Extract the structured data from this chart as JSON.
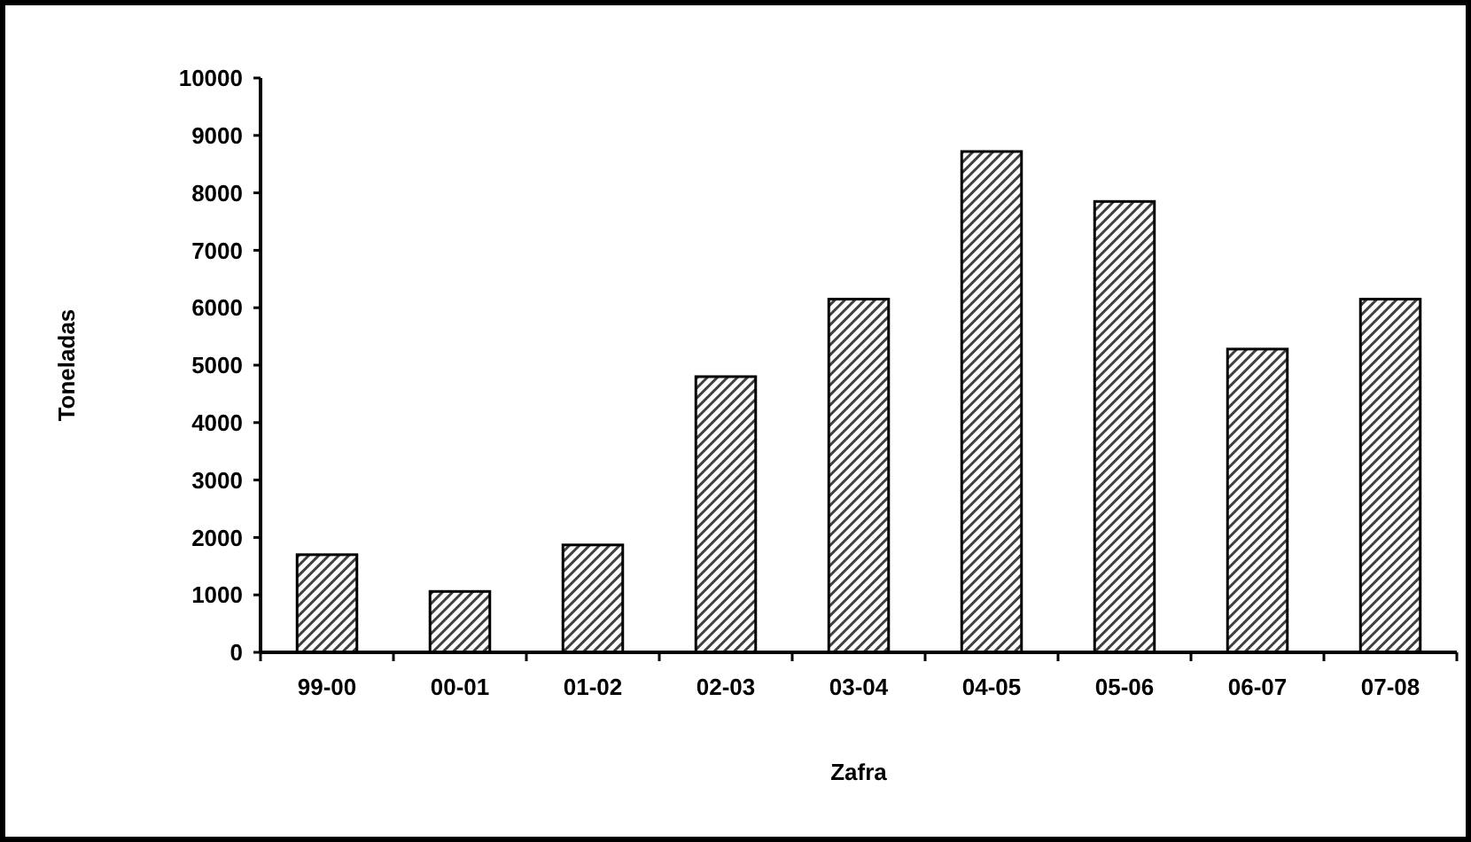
{
  "chart_data": {
    "type": "bar",
    "xlabel": "Zafra",
    "ylabel": "Toneladas",
    "categories": [
      "99-00",
      "00-01",
      "01-02",
      "02-03",
      "03-04",
      "04-05",
      "05-06",
      "06-07",
      "07-08"
    ],
    "values": [
      1700,
      1060,
      1870,
      4800,
      6150,
      8720,
      7850,
      5280,
      6150
    ],
    "color": "#000000",
    "ylim": [
      0,
      10000
    ],
    "yticks": [
      0,
      1000,
      2000,
      3000,
      4000,
      5000,
      6000,
      7000,
      8000,
      9000,
      10000
    ],
    "grid": false
  }
}
